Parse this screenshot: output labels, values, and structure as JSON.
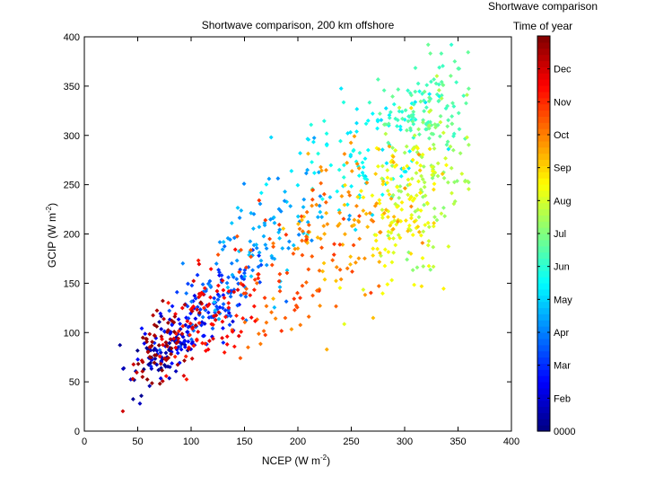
{
  "window_title": "Shortwave comparison",
  "chart_data": {
    "type": "scatter",
    "title": "Shortwave comparison, 200 km offshore",
    "xlabel": {
      "main": "NCEP (W m",
      "sup": "-2",
      "close": ")"
    },
    "ylabel": {
      "main": "GCIP (W m",
      "sup": "-2",
      "close": ")"
    },
    "xlim": [
      0,
      400
    ],
    "ylim": [
      0,
      400
    ],
    "x_ticks": [
      "0",
      "50",
      "100",
      "150",
      "200",
      "250",
      "300",
      "350",
      "400"
    ],
    "y_ticks": [
      "0",
      "50",
      "100",
      "150",
      "200",
      "250",
      "300",
      "350",
      "400"
    ],
    "grid": false,
    "colormap": "jet",
    "color_variable": "Time of year",
    "colorbar": {
      "title": "Time of year",
      "range": [
        0,
        12
      ],
      "ticks": [
        {
          "value": 0,
          "label": "0000"
        },
        {
          "value": 1,
          "label": "Feb"
        },
        {
          "value": 2,
          "label": "Mar"
        },
        {
          "value": 3,
          "label": "Apr"
        },
        {
          "value": 4,
          "label": "May"
        },
        {
          "value": 5,
          "label": "Jun"
        },
        {
          "value": 6,
          "label": "Jul"
        },
        {
          "value": 7,
          "label": "Aug"
        },
        {
          "value": 8,
          "label": "Sep"
        },
        {
          "value": 9,
          "label": "Oct"
        },
        {
          "value": 10,
          "label": "Nov"
        },
        {
          "value": 11,
          "label": "Dec"
        }
      ]
    },
    "seasonal_clusters": [
      {
        "month": 0.5,
        "x_center": 70,
        "x_spread": 30,
        "y_center": 75,
        "y_spread": 28,
        "count": 60
      },
      {
        "month": 1.5,
        "x_center": 95,
        "x_spread": 35,
        "y_center": 100,
        "y_spread": 30,
        "count": 80
      },
      {
        "month": 2.5,
        "x_center": 125,
        "x_spread": 40,
        "y_center": 140,
        "y_spread": 35,
        "count": 90
      },
      {
        "month": 3.5,
        "x_center": 175,
        "x_spread": 50,
        "y_center": 200,
        "y_spread": 50,
        "count": 90
      },
      {
        "month": 4.5,
        "x_center": 260,
        "x_spread": 60,
        "y_center": 285,
        "y_spread": 55,
        "count": 100
      },
      {
        "month": 5.5,
        "x_center": 320,
        "x_spread": 35,
        "y_center": 330,
        "y_spread": 45,
        "count": 110
      },
      {
        "month": 6.5,
        "x_center": 320,
        "x_spread": 35,
        "y_center": 250,
        "y_spread": 70,
        "count": 110
      },
      {
        "month": 7.5,
        "x_center": 300,
        "x_spread": 40,
        "y_center": 220,
        "y_spread": 70,
        "count": 110
      },
      {
        "month": 8.5,
        "x_center": 255,
        "x_spread": 55,
        "y_center": 210,
        "y_spread": 70,
        "count": 100
      },
      {
        "month": 9.5,
        "x_center": 195,
        "x_spread": 55,
        "y_center": 165,
        "y_spread": 60,
        "count": 90
      },
      {
        "month": 10.5,
        "x_center": 120,
        "x_spread": 40,
        "y_center": 120,
        "y_spread": 40,
        "count": 90
      },
      {
        "month": 11.5,
        "x_center": 75,
        "x_spread": 30,
        "y_center": 85,
        "y_spread": 30,
        "count": 70
      }
    ]
  }
}
